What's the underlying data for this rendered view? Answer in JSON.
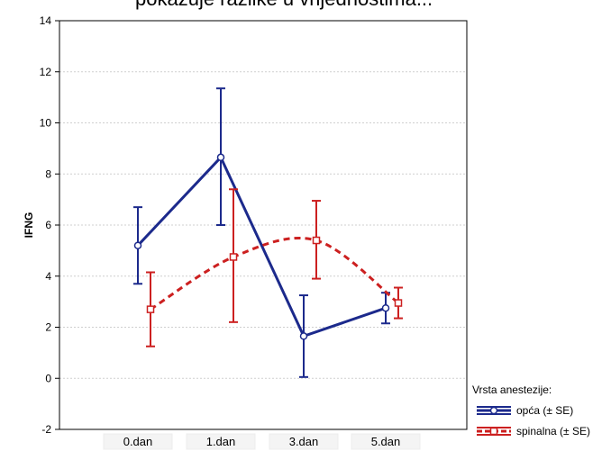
{
  "header": {
    "partial_title": "pokazuje razlike u vrijednostima..."
  },
  "chart_data": {
    "type": "line",
    "title": "",
    "xlabel": "",
    "ylabel": "IFNG",
    "ylim": [
      -2,
      14
    ],
    "yticks": [
      -2,
      0,
      2,
      4,
      6,
      8,
      10,
      12,
      14
    ],
    "categories": [
      "0.dan",
      "1.dan",
      "3.dan",
      "5.dan"
    ],
    "grid": true,
    "legend": {
      "placement": "bottom-right",
      "title": "Vrsta anestezije:"
    },
    "series": [
      {
        "name": "opća (± SE)",
        "color": "#1c2a8c",
        "line_style": "solid",
        "marker": "circle",
        "values": [
          5.2,
          8.65,
          1.65,
          2.75
        ],
        "se_low": [
          3.7,
          6.0,
          0.05,
          2.15
        ],
        "se_high": [
          6.7,
          11.35,
          3.25,
          3.35
        ]
      },
      {
        "name": "spinalna (± SE)",
        "color": "#cc2020",
        "line_style": "dashed",
        "marker": "square",
        "values": [
          2.7,
          4.75,
          5.4,
          2.95
        ],
        "se_low": [
          1.25,
          2.2,
          3.9,
          2.35
        ],
        "se_high": [
          4.15,
          7.4,
          6.95,
          3.55
        ]
      }
    ]
  }
}
